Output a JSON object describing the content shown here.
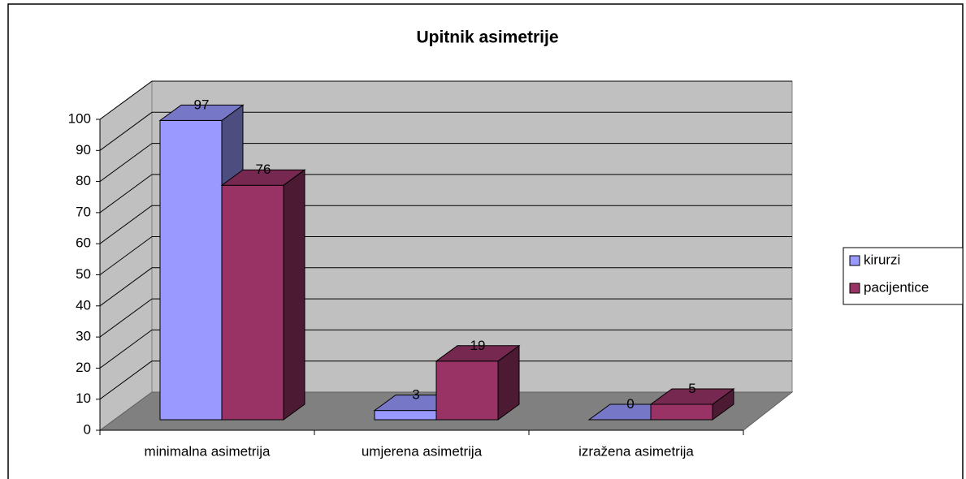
{
  "chart_data": {
    "type": "bar3d",
    "title": "Upitnik asimetrije",
    "categories": [
      "minimalna asimetrija",
      "umjerena asimetrija",
      "izražena asimetrija"
    ],
    "series": [
      {
        "name": "kirurzi",
        "color": "#9999ff",
        "values": [
          97,
          3,
          0
        ]
      },
      {
        "name": "pacijentice",
        "color": "#993366",
        "values": [
          76,
          19,
          5
        ]
      }
    ],
    "ylim": [
      0,
      100
    ],
    "yticks": [
      0,
      10,
      20,
      30,
      40,
      50,
      60,
      70,
      80,
      90,
      100
    ],
    "grid": true,
    "legend": "right"
  }
}
